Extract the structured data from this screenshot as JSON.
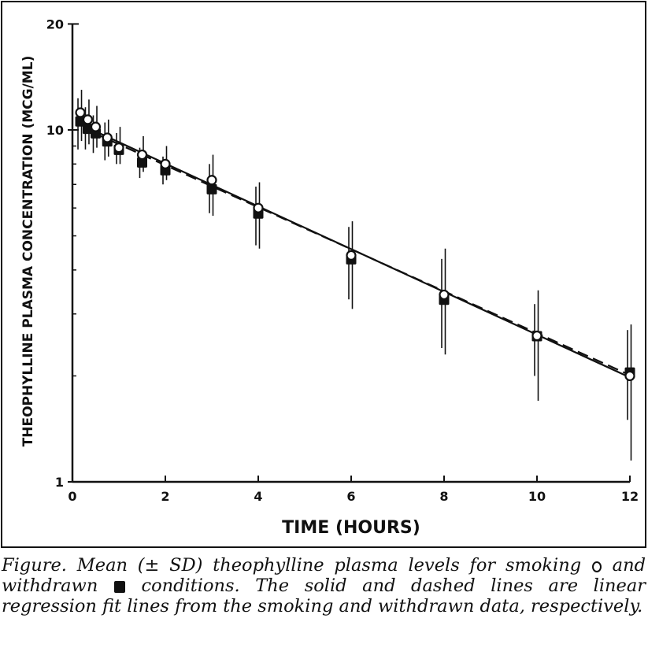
{
  "chart_data": {
    "type": "scatter",
    "title": "",
    "xlabel": "TIME (HOURS)",
    "ylabel": "THEOPHYLLINE PLASMA CONCENTRATION (MCG/ML)",
    "xlim": [
      0,
      12
    ],
    "ylim": [
      1,
      20
    ],
    "yscale": "log",
    "x_ticks": [
      0,
      2,
      4,
      6,
      8,
      10,
      12
    ],
    "x_tick_labels": [
      "0",
      "2",
      "4",
      "6",
      "8",
      "10",
      "12"
    ],
    "y_ticks": [
      1,
      10,
      20
    ],
    "y_tick_labels": [
      "1",
      "10",
      "20"
    ],
    "grid": false,
    "legend": "caption",
    "series": [
      {
        "name": "smoking",
        "marker": "open-circle",
        "x": [
          0.17,
          0.33,
          0.5,
          0.75,
          1,
          1.5,
          2,
          3,
          4,
          6,
          8,
          10,
          12
        ],
        "y": [
          11.2,
          10.7,
          10.2,
          9.5,
          8.9,
          8.5,
          8.0,
          7.2,
          6.0,
          4.4,
          3.4,
          2.6,
          2.0
        ],
        "error_low": [
          9.3,
          9.1,
          8.9,
          8.4,
          8.0,
          7.6,
          7.2,
          5.7,
          4.6,
          3.1,
          2.3,
          1.7,
          1.15
        ],
        "error_high": [
          13.0,
          12.2,
          11.7,
          10.7,
          10.2,
          9.6,
          9.0,
          8.5,
          7.1,
          5.5,
          4.6,
          3.5,
          2.8
        ]
      },
      {
        "name": "withdrawn",
        "marker": "filled-square",
        "x": [
          0.17,
          0.33,
          0.5,
          0.75,
          1,
          1.5,
          2,
          3,
          4,
          6,
          8,
          10,
          12
        ],
        "y": [
          10.6,
          10.1,
          9.8,
          9.3,
          8.8,
          8.1,
          7.7,
          6.8,
          5.8,
          4.3,
          3.3,
          2.6,
          2.05
        ],
        "error_low": [
          8.8,
          8.8,
          8.6,
          8.2,
          8.0,
          7.3,
          7.0,
          5.8,
          4.7,
          3.3,
          2.4,
          2.0,
          1.5
        ],
        "error_high": [
          12.3,
          11.6,
          11.0,
          10.5,
          9.8,
          8.9,
          8.4,
          8.0,
          6.9,
          5.3,
          4.3,
          3.2,
          2.7
        ]
      }
    ],
    "fit_lines": [
      {
        "name": "smoking",
        "style": "solid",
        "x": [
          0.5,
          12
        ],
        "y": [
          9.9,
          1.98
        ]
      },
      {
        "name": "withdrawn",
        "style": "dashed",
        "x": [
          0.5,
          12
        ],
        "y": [
          9.75,
          2.01
        ]
      }
    ]
  },
  "caption": {
    "prefix": "Figure. Mean (± SD) theophylline plasma levels for smoking ",
    "smoking_symbol_name": "open-circle",
    "middle": " and withdrawn ",
    "withdrawn_symbol_name": "filled-square",
    "suffix": " conditions. The solid and dashed lines are linear regression fit lines from the smoking and withdrawn data, respectively."
  }
}
